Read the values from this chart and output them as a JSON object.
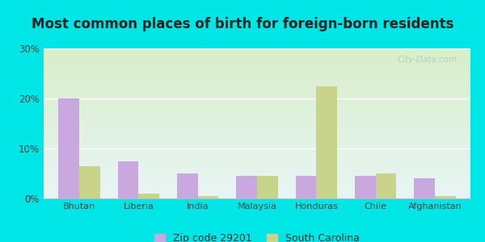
{
  "title": "Most common places of birth for foreign-born residents",
  "categories": [
    "Bhutan",
    "Liberia",
    "India",
    "Malaysia",
    "Honduras",
    "Chile",
    "Afghanistan"
  ],
  "zip_values": [
    20.0,
    7.5,
    5.0,
    4.5,
    4.5,
    4.5,
    4.0
  ],
  "sc_values": [
    6.5,
    1.0,
    0.5,
    4.5,
    22.5,
    5.0,
    0.5
  ],
  "zip_color": "#c9a8e0",
  "sc_color": "#c8d48a",
  "ylim": [
    0,
    30
  ],
  "yticks": [
    0,
    10,
    20,
    30
  ],
  "ytick_labels": [
    "0%",
    "10%",
    "20%",
    "30%"
  ],
  "legend_zip_label": "Zip code 29201",
  "legend_sc_label": "South Carolina",
  "bar_width": 0.35,
  "title_fontsize": 12,
  "watermark": "City-Data.com",
  "outer_bg": "#00e5e5",
  "grad_top": "#e8f5f5",
  "grad_bottom": "#d8efc8"
}
